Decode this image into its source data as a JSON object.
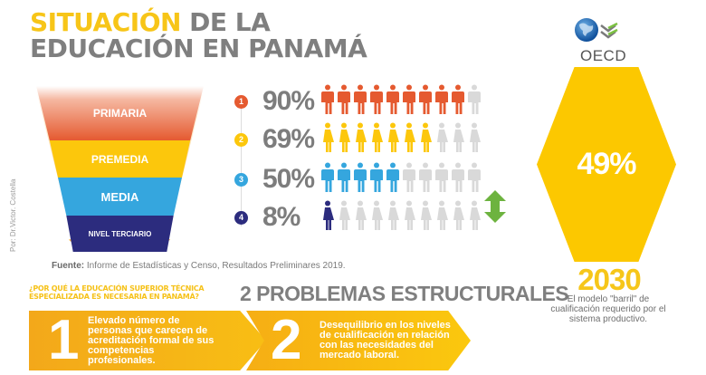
{
  "header": {
    "title_highlight": "SITUACIÓN",
    "title_rest_line1": " DE LA",
    "title_line2": "EDUCACIÓN EN PANAMÁ"
  },
  "funnel": {
    "levels": [
      {
        "label": "PRIMARIA",
        "color": "#e55a30"
      },
      {
        "label": "PREMEDIA",
        "color": "#fcc70c"
      },
      {
        "label": "MEDIA",
        "color": "#35a6de"
      },
      {
        "label": "NIVEL TERCIARIO",
        "color": "#2c2c7e"
      }
    ]
  },
  "author": "Por: Dr.Victor. Costella",
  "stats": [
    {
      "badge": "1",
      "percent": "90%",
      "value": 90,
      "figure": "male",
      "color": "#e55a30"
    },
    {
      "badge": "2",
      "percent": "69%",
      "value": 69,
      "figure": "female",
      "color": "#fcc70c"
    },
    {
      "badge": "3",
      "percent": "50%",
      "value": 50,
      "figure": "male",
      "color": "#35a6de"
    },
    {
      "badge": "4",
      "percent": "8%",
      "value": 8,
      "figure": "female",
      "color": "#2c2c7e"
    }
  ],
  "colors": {
    "inactive_figure": "#d9d9d9",
    "accent_yellow": "#fcc800",
    "arrow_green": "#6db33f",
    "text_gray": "#7f7f7f"
  },
  "source": {
    "label": "Fuente:",
    "text": " Informe de Estadísticas y Censo, Resultados Preliminares 2019."
  },
  "oecd": {
    "logo_text": "OECD",
    "hex_value": "49%",
    "year": "2030",
    "description": "El modelo \"barril\" de cualificación requerido por el sistema productivo."
  },
  "section": {
    "question": "¿POR QUÉ LA EDUCACIÓN SUPERIOR TÉCNICA ESPECIALIZADA ES NECESARIA EN PANAMÁ?",
    "title": "2 PROBLEMAS ESTRUCTURALES",
    "problems": [
      {
        "number": "1",
        "text": "Elevado número de personas que carecen de acreditación formal de sus competencias profesionales."
      },
      {
        "number": "2",
        "text": "Desequilibrio en los niveles de cualificación en relación con las necesidades del mercado laboral."
      }
    ]
  }
}
